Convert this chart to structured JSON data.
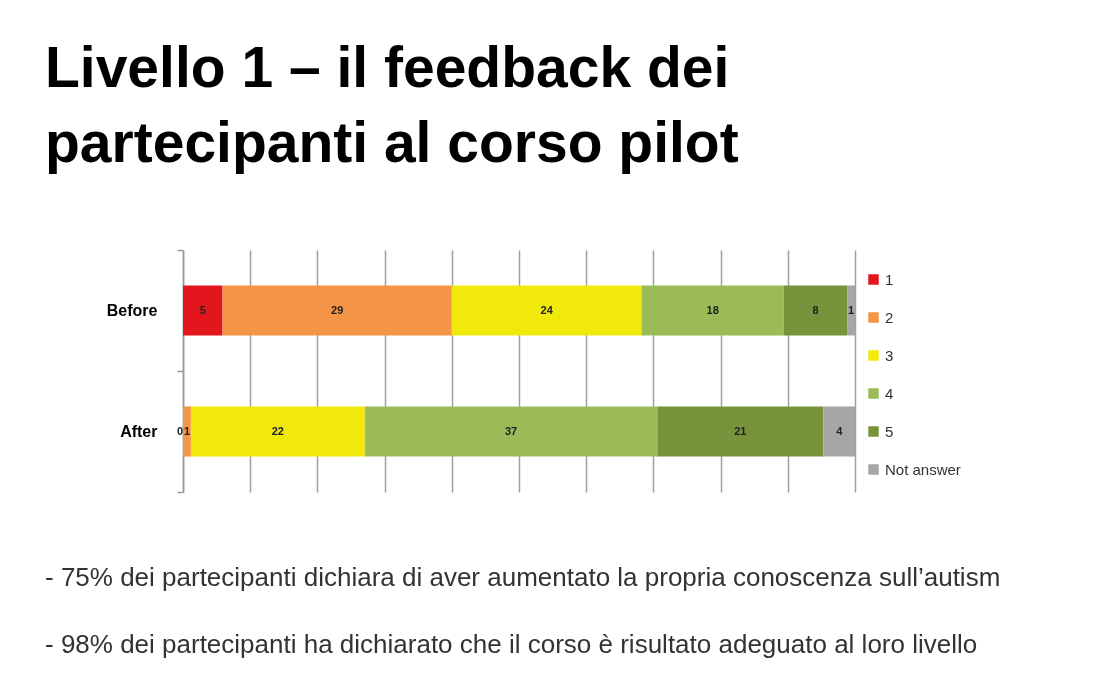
{
  "chart_data": {
    "type": "bar",
    "orientation": "horizontal",
    "stacked": true,
    "title": "Livello 1 – il feedback dei\npartecipanti al corso pilot",
    "categories": [
      "Before",
      "After"
    ],
    "series": [
      {
        "name": "1",
        "color": "#e3161e",
        "values": [
          5,
          0
        ],
        "value_labels": [
          "5",
          null
        ]
      },
      {
        "name": "2",
        "color": "#f39447",
        "values": [
          29,
          1
        ],
        "value_labels": [
          "29",
          "1"
        ]
      },
      {
        "name": "3",
        "color": "#f2e90c",
        "values": [
          24,
          22
        ],
        "value_labels": [
          "24",
          "22"
        ]
      },
      {
        "name": "4",
        "color": "#9bbb59",
        "values": [
          18,
          37
        ],
        "value_labels": [
          "18",
          "37"
        ]
      },
      {
        "name": "5",
        "color": "#77933c",
        "values": [
          8,
          21
        ],
        "value_labels": [
          "8",
          "21"
        ]
      },
      {
        "name": "Not answer",
        "color": "#a6a6a6",
        "values": [
          1,
          4
        ],
        "value_labels": [
          "1",
          "4"
        ]
      }
    ],
    "xlim": [
      0,
      85
    ],
    "xticks": [
      {
        "value": 0,
        "label": null
      },
      {
        "value": 8.5,
        "label": null
      },
      {
        "value": 17,
        "label": null
      },
      {
        "value": 25.5,
        "label": null
      },
      {
        "value": 34,
        "label": null
      },
      {
        "value": 42.5,
        "label": null
      },
      {
        "value": 51,
        "label": null
      },
      {
        "value": 59.5,
        "label": null
      },
      {
        "value": 68,
        "label": null
      },
      {
        "value": 76.5,
        "label": null
      },
      {
        "value": 85,
        "label": null
      }
    ],
    "grid": "x",
    "legend": "right",
    "tick_labels": "y",
    "annotations": [
      {
        "text": "0",
        "y": "After"
      },
      "- 75% dei partecipanti dichiara di aver aumentato la propria conoscenza sull’autism",
      "- 98% dei partecipanti ha dichiarato che il corso è risultato adeguato al loro livello"
    ]
  }
}
